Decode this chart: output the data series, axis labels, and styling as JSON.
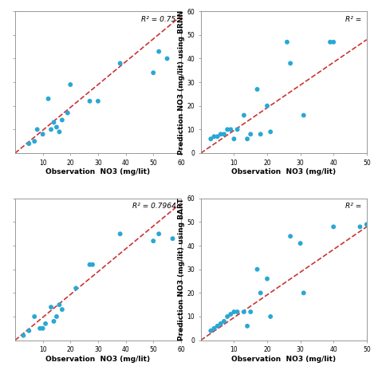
{
  "plots": [
    {
      "r2_label": "R² = 0.75",
      "xlabel": "Observation  NO3 (mg/lit)",
      "ylabel": "",
      "show_yticklabels": false,
      "xlim": [
        0,
        60
      ],
      "ylim": [
        0,
        60
      ],
      "xticks": [
        10,
        20,
        30,
        40,
        50,
        60
      ],
      "yticks": [
        10,
        20,
        30,
        40,
        50,
        60
      ],
      "scatter_x": [
        5,
        7,
        8,
        10,
        12,
        13,
        14,
        15,
        16,
        17,
        19,
        20,
        27,
        30,
        38,
        50,
        52,
        55
      ],
      "scatter_y": [
        4,
        5,
        10,
        8,
        23,
        10,
        13,
        11,
        9,
        14,
        17,
        29,
        22,
        22,
        38,
        34,
        43,
        40
      ],
      "line_x": [
        0,
        60
      ],
      "line_y": [
        0,
        58
      ],
      "position": "top-left"
    },
    {
      "r2_label": "R² =",
      "xlabel": "Observation  NO3 (mg/lit)",
      "ylabel": "Prediction NO3 (mg/lit) using BRNN",
      "show_yticklabels": true,
      "xlim": [
        0,
        50
      ],
      "ylim": [
        0,
        60
      ],
      "xticks": [
        10,
        20,
        30,
        40,
        50
      ],
      "yticks": [
        0,
        10,
        20,
        30,
        40,
        50,
        60
      ],
      "scatter_x": [
        3,
        4,
        5,
        6,
        7,
        8,
        9,
        10,
        11,
        13,
        14,
        15,
        17,
        18,
        20,
        21,
        26,
        27,
        31,
        39,
        40
      ],
      "scatter_y": [
        6,
        7,
        7,
        8,
        8,
        10,
        10,
        6,
        10,
        16,
        6,
        8,
        27,
        8,
        20,
        9,
        47,
        38,
        16,
        47,
        47
      ],
      "line_x": [
        0,
        50
      ],
      "line_y": [
        0,
        48
      ],
      "position": "top-right"
    },
    {
      "r2_label": "R² = 0.7964",
      "xlabel": "Observation  NO3 (mg/lit)",
      "ylabel": "",
      "show_yticklabels": false,
      "xlim": [
        0,
        60
      ],
      "ylim": [
        0,
        60
      ],
      "xticks": [
        10,
        20,
        30,
        40,
        50,
        60
      ],
      "yticks": [
        10,
        20,
        30,
        40,
        50,
        60
      ],
      "scatter_x": [
        3,
        5,
        7,
        9,
        10,
        11,
        13,
        14,
        15,
        16,
        17,
        22,
        27,
        28,
        38,
        50,
        52,
        57
      ],
      "scatter_y": [
        2,
        4,
        10,
        5,
        5,
        7,
        14,
        8,
        10,
        15,
        13,
        22,
        32,
        32,
        45,
        42,
        45,
        43
      ],
      "line_x": [
        0,
        60
      ],
      "line_y": [
        0,
        58
      ],
      "position": "bottom-left"
    },
    {
      "r2_label": "R² =",
      "xlabel": "Observation  NO3 (mg/lit)",
      "ylabel": "Prediction NO3 (mg/lit) using BART",
      "show_yticklabels": true,
      "xlim": [
        0,
        50
      ],
      "ylim": [
        0,
        60
      ],
      "xticks": [
        10,
        20,
        30,
        40,
        50
      ],
      "yticks": [
        0,
        10,
        20,
        30,
        40,
        50,
        60
      ],
      "scatter_x": [
        3,
        4,
        5,
        6,
        7,
        8,
        9,
        10,
        11,
        13,
        14,
        15,
        17,
        18,
        20,
        21,
        27,
        30,
        31,
        40,
        48,
        50
      ],
      "scatter_y": [
        4,
        5,
        6,
        7,
        8,
        10,
        11,
        12,
        12,
        12,
        6,
        12,
        30,
        20,
        26,
        10,
        44,
        41,
        20,
        48,
        48,
        49
      ],
      "line_x": [
        0,
        50
      ],
      "line_y": [
        0,
        48
      ],
      "position": "bottom-right"
    }
  ],
  "dot_color": "#29A8D4",
  "line_color": "#CC3333",
  "dot_size": 18,
  "line_width": 1.2,
  "font_size_label": 6.5,
  "font_size_tick": 5.5,
  "font_size_r2": 6.5,
  "bg_color": "#ffffff"
}
